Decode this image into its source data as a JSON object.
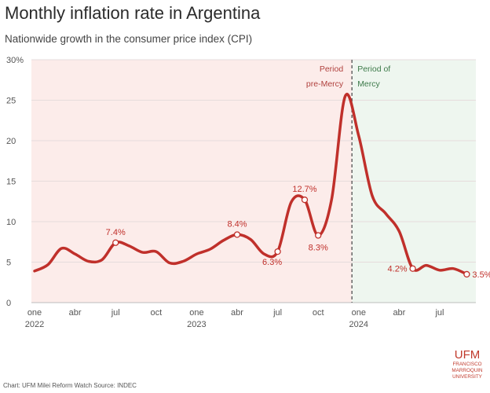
{
  "header": {
    "title": "Monthly inflation rate in Argentina",
    "subtitle": "Nationwide growth in the consumer price index (CPI)"
  },
  "footer": {
    "source": "Chart: UFM Milei Reform Watch Source: INDEC"
  },
  "logo": {
    "name": "UFM",
    "lines": [
      "FRANCISCO",
      "MARROQUIN",
      "UNIVERSITY"
    ]
  },
  "colors": {
    "line": "#c0302b",
    "pre_region": "#fcecea",
    "mercy_region": "#eef6ef",
    "pre_label": "#b0413e",
    "mercy_label": "#3d7a4a",
    "divider": "#666666",
    "axis_text": "#555555"
  },
  "chart_data": {
    "type": "line",
    "title": "Monthly inflation rate in Argentina",
    "subtitle": "Nationwide growth in the consumer price index (CPI)",
    "xlabel": "",
    "ylabel": "",
    "ylim": [
      0,
      30
    ],
    "y_ticks": [
      0,
      5,
      10,
      15,
      20,
      25,
      30
    ],
    "y_tick_labels": [
      "0",
      "5",
      "10",
      "15",
      "20",
      "25",
      "30%"
    ],
    "x_ticks": [
      {
        "index": 0,
        "line1": "one",
        "line2": "2022"
      },
      {
        "index": 3,
        "line1": "abr",
        "line2": ""
      },
      {
        "index": 6,
        "line1": "jul",
        "line2": ""
      },
      {
        "index": 9,
        "line1": "oct",
        "line2": ""
      },
      {
        "index": 12,
        "line1": "one",
        "line2": "2023"
      },
      {
        "index": 15,
        "line1": "abr",
        "line2": ""
      },
      {
        "index": 18,
        "line1": "jul",
        "line2": ""
      },
      {
        "index": 21,
        "line1": "oct",
        "line2": ""
      },
      {
        "index": 24,
        "line1": "one",
        "line2": "2024"
      },
      {
        "index": 27,
        "line1": "abr",
        "line2": ""
      },
      {
        "index": 30,
        "line1": "jul",
        "line2": ""
      }
    ],
    "series": [
      {
        "name": "Monthly CPI growth (%)",
        "values": [
          3.9,
          4.7,
          6.7,
          6.0,
          5.1,
          5.3,
          7.4,
          7.0,
          6.2,
          6.3,
          4.9,
          5.1,
          6.0,
          6.6,
          7.7,
          8.4,
          7.8,
          6.0,
          6.3,
          12.4,
          12.7,
          8.3,
          12.8,
          25.5,
          20.6,
          13.2,
          11.0,
          8.8,
          4.2,
          4.6,
          4.0,
          4.2,
          3.5
        ]
      }
    ],
    "annotations": [
      {
        "index": 6,
        "label": "7.4%",
        "position": "above"
      },
      {
        "index": 15,
        "label": "8.4%",
        "position": "above"
      },
      {
        "index": 18,
        "label": "6.3%",
        "position": "below-left"
      },
      {
        "index": 20,
        "label": "12.7%",
        "position": "above"
      },
      {
        "index": 21,
        "label": "8.3%",
        "position": "below"
      },
      {
        "index": 28,
        "label": "4.2%",
        "position": "left"
      },
      {
        "index": 32,
        "label": "3.5%",
        "position": "right"
      }
    ],
    "regions": [
      {
        "name": "pre-Mercy",
        "line1": "Period",
        "line2": "pre-Mercy",
        "from_index": 0,
        "to_index": 23.5
      },
      {
        "name": "Mercy",
        "line1": "Period of",
        "line2": "Mercy",
        "from_index": 23.5,
        "to_index": 33
      }
    ],
    "divider_index": 23.5,
    "grid": true
  }
}
